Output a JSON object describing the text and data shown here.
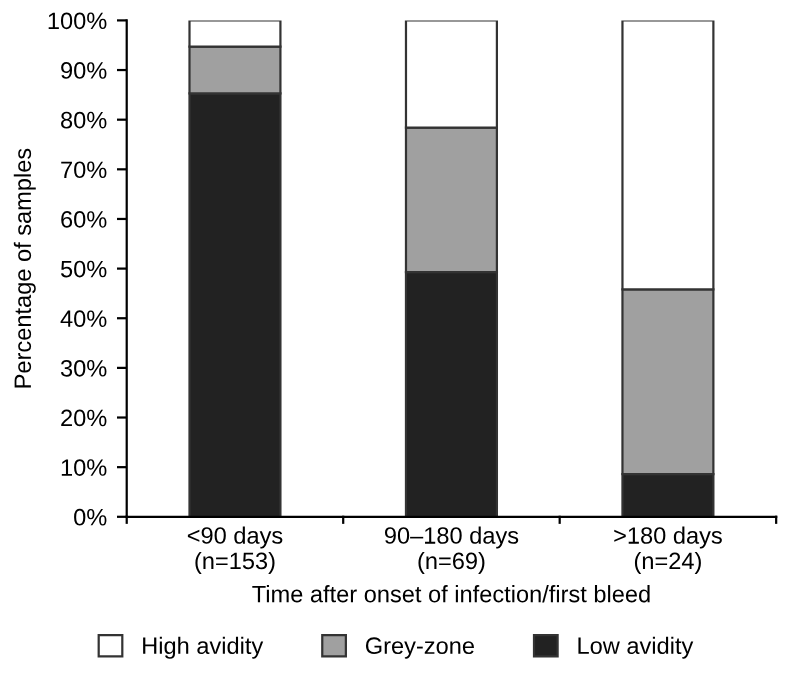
{
  "chart_data": {
    "type": "bar",
    "stacked": true,
    "xlabel": "Time after onset of infection/first bleed",
    "ylabel": "Percentage of samples",
    "categories": [
      "<90 days\n(n=153)",
      "90–180 days\n(n=69)",
      ">180 days\n(n=24)"
    ],
    "series": [
      {
        "name": "Low avidity",
        "color": "#222222",
        "values": [
          85.3,
          49.3,
          8.6
        ]
      },
      {
        "name": "Grey-zone",
        "color": "#a0a0a0",
        "values": [
          9.4,
          29.1,
          37.2
        ]
      },
      {
        "name": "High avidity",
        "color": "#ffffff",
        "values": [
          5.3,
          21.6,
          54.2
        ]
      }
    ],
    "ylim": [
      0,
      100
    ],
    "yticks": [
      {
        "value": 0,
        "label": "0%"
      },
      {
        "value": 10,
        "label": "10%"
      },
      {
        "value": 20,
        "label": "20%"
      },
      {
        "value": 30,
        "label": "30%"
      },
      {
        "value": 40,
        "label": "40%"
      },
      {
        "value": 50,
        "label": "50%"
      },
      {
        "value": 60,
        "label": "60%"
      },
      {
        "value": 70,
        "label": "70%"
      },
      {
        "value": 80,
        "label": "80%"
      },
      {
        "value": 90,
        "label": "90%"
      },
      {
        "value": 100,
        "label": "100%"
      }
    ],
    "grid": false,
    "legend": "bottom"
  }
}
